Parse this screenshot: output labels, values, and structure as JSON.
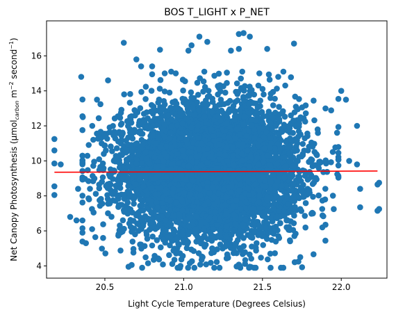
{
  "chart_data": {
    "type": "scatter",
    "title": "BOS T_LIGHT x P_NET",
    "xlabel": "Light Cycle Temperature (Degrees Celsius)",
    "ylabel": {
      "prefix": "Net Canopy Photosynthesis (µmol",
      "sub": "carbon",
      "mid1": " m",
      "sup1": "−2",
      "mid2": " second",
      "sup2": "−1",
      "suffix": ")"
    },
    "xlim": [
      20.13,
      22.29
    ],
    "ylim": [
      3.3,
      18.0
    ],
    "xticks": [
      20.5,
      21.0,
      21.5,
      22.0
    ],
    "xtick_labels": [
      "20.5",
      "21.0",
      "21.5",
      "22.0"
    ],
    "yticks": [
      4,
      6,
      8,
      10,
      12,
      14,
      16
    ],
    "ytick_labels": [
      "4",
      "6",
      "8",
      "10",
      "12",
      "14",
      "16"
    ],
    "grid": false,
    "colors": {
      "points": "#1f77b4",
      "trend": "#ff0000"
    },
    "distribution": {
      "x_mean": 21.17,
      "x_sd": 0.28,
      "y_mean": 9.4,
      "y_sd": 1.9,
      "n": 6000
    },
    "trend_line": {
      "x": [
        20.18,
        22.23
      ],
      "y": [
        9.35,
        9.42
      ]
    },
    "outliers": [
      {
        "x": 20.18,
        "y": 11.25
      },
      {
        "x": 20.18,
        "y": 10.6
      },
      {
        "x": 20.18,
        "y": 8.55
      },
      {
        "x": 20.18,
        "y": 8.05
      },
      {
        "x": 20.18,
        "y": 9.85
      },
      {
        "x": 20.22,
        "y": 9.8
      },
      {
        "x": 20.33,
        "y": 8.4
      },
      {
        "x": 20.35,
        "y": 14.8
      },
      {
        "x": 20.38,
        "y": 5.3
      },
      {
        "x": 20.32,
        "y": 6.6
      },
      {
        "x": 20.45,
        "y": 13.5
      },
      {
        "x": 20.52,
        "y": 14.6
      },
      {
        "x": 20.62,
        "y": 16.75
      },
      {
        "x": 20.65,
        "y": 3.95
      },
      {
        "x": 20.67,
        "y": 4.05
      },
      {
        "x": 20.7,
        "y": 15.8
      },
      {
        "x": 20.73,
        "y": 15.4
      },
      {
        "x": 20.8,
        "y": 15.4
      },
      {
        "x": 20.8,
        "y": 14.95
      },
      {
        "x": 20.85,
        "y": 16.35
      },
      {
        "x": 20.88,
        "y": 15.0
      },
      {
        "x": 20.95,
        "y": 15.0
      },
      {
        "x": 20.98,
        "y": 4.0
      },
      {
        "x": 21.03,
        "y": 16.3
      },
      {
        "x": 21.05,
        "y": 16.6
      },
      {
        "x": 21.1,
        "y": 17.1
      },
      {
        "x": 21.15,
        "y": 16.8
      },
      {
        "x": 21.12,
        "y": 4.5
      },
      {
        "x": 21.3,
        "y": 16.3
      },
      {
        "x": 21.35,
        "y": 17.25
      },
      {
        "x": 21.38,
        "y": 17.3
      },
      {
        "x": 21.35,
        "y": 16.4
      },
      {
        "x": 21.42,
        "y": 17.1
      },
      {
        "x": 21.42,
        "y": 3.95
      },
      {
        "x": 21.48,
        "y": 15.0
      },
      {
        "x": 21.53,
        "y": 16.4
      },
      {
        "x": 21.55,
        "y": 4.7
      },
      {
        "x": 21.6,
        "y": 14.8
      },
      {
        "x": 21.7,
        "y": 16.7
      },
      {
        "x": 21.74,
        "y": 4.5
      },
      {
        "x": 21.85,
        "y": 11.8
      },
      {
        "x": 21.9,
        "y": 13.0
      },
      {
        "x": 22.0,
        "y": 14.0
      },
      {
        "x": 22.03,
        "y": 13.5
      },
      {
        "x": 22.1,
        "y": 12.0
      },
      {
        "x": 22.12,
        "y": 8.4
      },
      {
        "x": 22.12,
        "y": 7.35
      },
      {
        "x": 22.1,
        "y": 9.8
      },
      {
        "x": 22.23,
        "y": 8.65
      },
      {
        "x": 22.24,
        "y": 7.25
      },
      {
        "x": 22.23,
        "y": 7.15
      },
      {
        "x": 22.24,
        "y": 8.75
      },
      {
        "x": 21.88,
        "y": 6.2
      },
      {
        "x": 21.9,
        "y": 6.35
      },
      {
        "x": 21.82,
        "y": 7.0
      },
      {
        "x": 22.05,
        "y": 10.0
      },
      {
        "x": 20.42,
        "y": 12.0
      },
      {
        "x": 20.28,
        "y": 6.8
      },
      {
        "x": 20.36,
        "y": 12.5
      },
      {
        "x": 20.4,
        "y": 7.8
      }
    ]
  }
}
